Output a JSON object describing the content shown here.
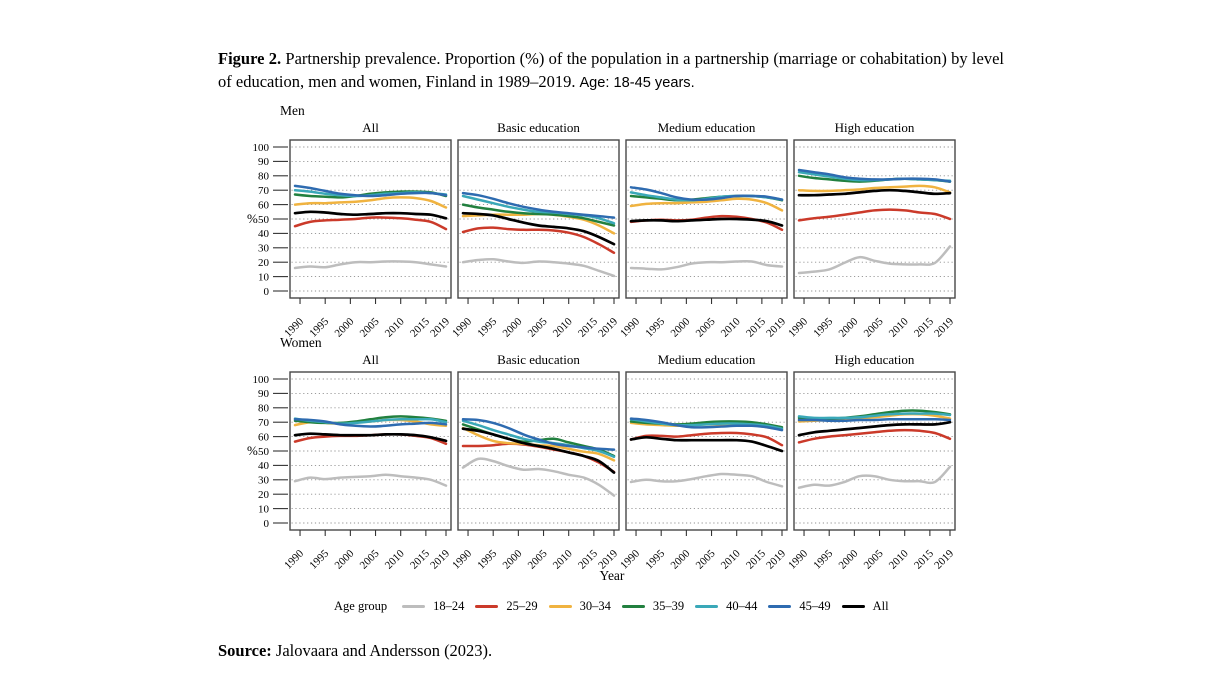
{
  "title": {
    "label": "Figure 2.",
    "text_serif": " Partnership prevalence. Proportion (%) of the population in a partnership (marriage or cohabitation) by level of education, men and women, Finland in 1989–2019.",
    "text_sans": "Age: 18-45 years."
  },
  "axis": {
    "y_label": "%",
    "x_label": "Year",
    "y_ticks": [
      0,
      10,
      20,
      30,
      40,
      50,
      60,
      70,
      80,
      90,
      100
    ],
    "x_ticks": [
      1990,
      1995,
      2000,
      2005,
      2010,
      2015,
      2019
    ]
  },
  "legend": {
    "title": "Age group",
    "items": [
      {
        "key": "18-24",
        "label": "18–24",
        "color": "#bdbdbd"
      },
      {
        "key": "25-29",
        "label": "25–29",
        "color": "#cb3a2a"
      },
      {
        "key": "30-34",
        "label": "30–34",
        "color": "#f0b340"
      },
      {
        "key": "35-39",
        "label": "35–39",
        "color": "#22803f"
      },
      {
        "key": "40-44",
        "label": "40–44",
        "color": "#3aa8b8"
      },
      {
        "key": "45-49",
        "label": "45–49",
        "color": "#2e6bb0"
      },
      {
        "key": "All",
        "label": "All",
        "color": "#000000"
      }
    ]
  },
  "source": {
    "label": "Source:",
    "text": " Jalovaara and Andersson (2023)."
  },
  "chart_data": {
    "type": "line",
    "x": [
      1989,
      1992,
      1995,
      1998,
      2001,
      2004,
      2007,
      2010,
      2013,
      2016,
      2019
    ],
    "ylim": [
      0,
      100
    ],
    "grid": "dotted",
    "series_order": [
      "18-24",
      "25-29",
      "30-34",
      "35-39",
      "40-44",
      "45-49",
      "All"
    ],
    "rows": [
      {
        "label": "Men",
        "panels": [
          {
            "title": "All",
            "series": {
              "18-24": [
                16,
                17,
                16.5,
                18.5,
                20,
                20,
                20.5,
                20.5,
                20,
                18.5,
                17
              ],
              "25-29": [
                45,
                48,
                49,
                49.5,
                50,
                51,
                51,
                50.5,
                49.5,
                48,
                43
              ],
              "30-34": [
                60,
                61,
                61,
                61.5,
                62,
                63,
                64.5,
                65,
                64.5,
                62.5,
                58
              ],
              "35-39": [
                67,
                66,
                65.5,
                65,
                66,
                67.5,
                68.5,
                69,
                69,
                68.5,
                66
              ],
              "40-44": [
                70,
                69,
                67.5,
                66.5,
                66,
                66.5,
                67.5,
                68,
                68.5,
                68,
                67
              ],
              "45-49": [
                73,
                71.5,
                69.5,
                67.5,
                66.5,
                66,
                66.5,
                67.5,
                68,
                68,
                66.5
              ],
              "All": [
                54,
                55,
                54.5,
                53.5,
                53,
                53.5,
                54,
                54,
                53.5,
                53,
                50.5
              ]
            }
          },
          {
            "title": "Basic education",
            "series": {
              "18-24": [
                20,
                21.5,
                22,
                20.5,
                19.5,
                20.5,
                20,
                19,
                17.5,
                14,
                10.5
              ],
              "25-29": [
                41,
                43.5,
                44,
                43,
                42.5,
                42.5,
                42,
                40.5,
                37.5,
                32.5,
                26.5
              ],
              "30-34": [
                52,
                52.5,
                53,
                53,
                53,
                53.5,
                53,
                51.5,
                49.5,
                45.5,
                40
              ],
              "35-39": [
                60,
                58,
                56.5,
                55,
                54,
                53.5,
                53,
                52,
                50.5,
                48,
                45.5
              ],
              "40-44": [
                66,
                63.5,
                61,
                58.5,
                56.5,
                55,
                54.5,
                53.5,
                52.5,
                50.5,
                47
              ],
              "45-49": [
                68,
                66.5,
                64,
                61,
                58.5,
                56.5,
                55,
                54,
                53,
                52,
                51
              ],
              "All": [
                54,
                53.5,
                52.5,
                50,
                47.5,
                45.5,
                44.5,
                43.5,
                41.5,
                37.5,
                32.5
              ]
            }
          },
          {
            "title": "Medium education",
            "series": {
              "18-24": [
                16,
                15.5,
                15,
                16.5,
                19,
                20,
                20,
                20.5,
                20.5,
                18,
                17
              ],
              "25-29": [
                48,
                49,
                49.5,
                49,
                49.5,
                51,
                52,
                51.5,
                50,
                47.5,
                42.5
              ],
              "30-34": [
                59,
                60.5,
                61,
                61,
                61.5,
                62,
                63,
                64,
                63.5,
                61,
                56
              ],
              "35-39": [
                66,
                65,
                64,
                63,
                63.5,
                64.5,
                65.5,
                66,
                66,
                65,
                63
              ],
              "40-44": [
                68.5,
                66.5,
                65,
                63.5,
                63,
                64,
                65.5,
                66,
                66,
                65,
                63.5
              ],
              "45-49": [
                72,
                70.5,
                68,
                65,
                63.5,
                63.5,
                64.5,
                66,
                66,
                65.5,
                63.5
              ],
              "All": [
                48.5,
                49,
                49,
                48.5,
                49,
                49.5,
                50,
                50,
                49.5,
                48.5,
                45.5
              ]
            }
          },
          {
            "title": "High education",
            "series": {
              "18-24": [
                12.5,
                13.5,
                15,
                19.5,
                23.5,
                21,
                19,
                18.5,
                18.5,
                19.5,
                31
              ],
              "25-29": [
                49,
                50.5,
                51.5,
                53,
                54.5,
                56,
                56.5,
                56,
                54.5,
                53.5,
                50
              ],
              "30-34": [
                70,
                69.5,
                69.5,
                70,
                70.5,
                71.5,
                72,
                72.5,
                73,
                72,
                68.5
              ],
              "35-39": [
                80,
                78.5,
                77.5,
                76.5,
                76,
                76.5,
                77.5,
                78,
                77.5,
                77,
                76
              ],
              "40-44": [
                82.5,
                81,
                79.5,
                78,
                77,
                77,
                77.5,
                78,
                77.5,
                77,
                76.5
              ],
              "45-49": [
                84,
                82.5,
                81,
                79,
                78,
                77.5,
                77.5,
                78,
                78,
                77.5,
                76
              ],
              "All": [
                66.5,
                66.5,
                67,
                67.5,
                68.5,
                69.5,
                70,
                69.5,
                68.5,
                67.5,
                68
              ]
            }
          }
        ]
      },
      {
        "label": "Women",
        "panels": [
          {
            "title": "All",
            "series": {
              "18-24": [
                29,
                31.5,
                30.5,
                31.5,
                32,
                32.5,
                33.5,
                32.5,
                31.5,
                30,
                26
              ],
              "25-29": [
                56.5,
                59,
                60,
                60.5,
                60.5,
                61,
                61.5,
                61.5,
                60.5,
                59,
                55
              ],
              "30-34": [
                68,
                70,
                69.5,
                69,
                70,
                70.5,
                71.5,
                71.5,
                70.5,
                68.5,
                67.5
              ],
              "35-39": [
                71,
                70,
                69.5,
                69.5,
                70.5,
                72,
                73.5,
                74,
                73.5,
                72.5,
                71
              ],
              "40-44": [
                72.5,
                71,
                70,
                69,
                69.5,
                70.5,
                71.5,
                72,
                72,
                72,
                70
              ],
              "45-49": [
                72,
                71.5,
                70.5,
                68.5,
                67.5,
                67,
                67.5,
                68.5,
                69,
                69.5,
                68.5
              ],
              "All": [
                61,
                62,
                61.5,
                61,
                61,
                61,
                61.5,
                61.5,
                61,
                59.5,
                57
              ]
            }
          },
          {
            "title": "Basic education",
            "series": {
              "18-24": [
                38.5,
                44.5,
                43,
                39.5,
                37,
                37.5,
                36,
                33.5,
                31.5,
                26.5,
                19
              ],
              "25-29": [
                53.5,
                53.5,
                54,
                55,
                54.5,
                53,
                51,
                49,
                46.5,
                42,
                35.5
              ],
              "30-34": [
                66,
                61,
                57,
                55.5,
                55,
                54,
                53.5,
                51.5,
                49.5,
                48,
                43.5
              ],
              "35-39": [
                68.5,
                65,
                61.5,
                58.5,
                56.5,
                57.5,
                58.5,
                56,
                53.5,
                51,
                46.5
              ],
              "40-44": [
                71,
                68,
                64.5,
                61.5,
                58.5,
                56.5,
                55.5,
                54,
                52,
                50,
                46
              ],
              "45-49": [
                72,
                71.5,
                69.5,
                66,
                61.5,
                58,
                55,
                53.5,
                52.5,
                51.5,
                51
              ],
              "All": [
                65.5,
                64,
                61.5,
                58.5,
                55.5,
                53.5,
                51.5,
                49,
                46.5,
                43,
                35
              ]
            }
          },
          {
            "title": "Medium education",
            "series": {
              "18-24": [
                28.5,
                30,
                29,
                29,
                30.5,
                32.5,
                34,
                33.5,
                32.5,
                28.5,
                25.5
              ],
              "25-29": [
                58,
                60.5,
                60.5,
                60,
                61,
                62,
                62.5,
                62.5,
                61.5,
                59.5,
                54
              ],
              "30-34": [
                69.5,
                68.5,
                68,
                67.5,
                68,
                68.5,
                68.5,
                68.5,
                68,
                66.5,
                65
              ],
              "35-39": [
                70.5,
                69.5,
                69,
                68.5,
                69,
                70,
                70.5,
                70.5,
                70,
                68.5,
                66.5
              ],
              "40-44": [
                72,
                70.5,
                69,
                68,
                68,
                68.5,
                69,
                69,
                68.5,
                67.5,
                65.5
              ],
              "45-49": [
                72.5,
                71.5,
                70,
                68,
                66.5,
                66.5,
                67,
                67.5,
                67.5,
                66.5,
                64.5
              ],
              "All": [
                58,
                59.5,
                58.5,
                57.5,
                57.5,
                57.5,
                57.5,
                57.5,
                56.5,
                53.5,
                50
              ]
            }
          },
          {
            "title": "High education",
            "series": {
              "18-24": [
                24.5,
                26.5,
                26,
                28.5,
                32.5,
                32.5,
                30,
                29,
                29,
                28.5,
                39
              ],
              "25-29": [
                56,
                58.5,
                60,
                61,
                62,
                63,
                64,
                64.5,
                64,
                62.5,
                58.5
              ],
              "30-34": [
                70.5,
                71,
                71.5,
                72,
                72.5,
                73.5,
                74.5,
                75.5,
                75.5,
                74.5,
                72.5
              ],
              "35-39": [
                73,
                72.5,
                72.5,
                73,
                74,
                75.5,
                77,
                78,
                78,
                77,
                75.5
              ],
              "40-44": [
                74,
                73,
                73,
                73,
                73.5,
                74.5,
                75.5,
                76,
                76,
                76,
                75
              ],
              "45-49": [
                71.5,
                71.5,
                71,
                71,
                71.5,
                71.5,
                72,
                72,
                72,
                72,
                71.5
              ],
              "All": [
                61,
                63,
                64,
                65,
                66,
                67,
                68,
                68.5,
                68.5,
                68.5,
                70
              ]
            }
          }
        ]
      }
    ]
  }
}
